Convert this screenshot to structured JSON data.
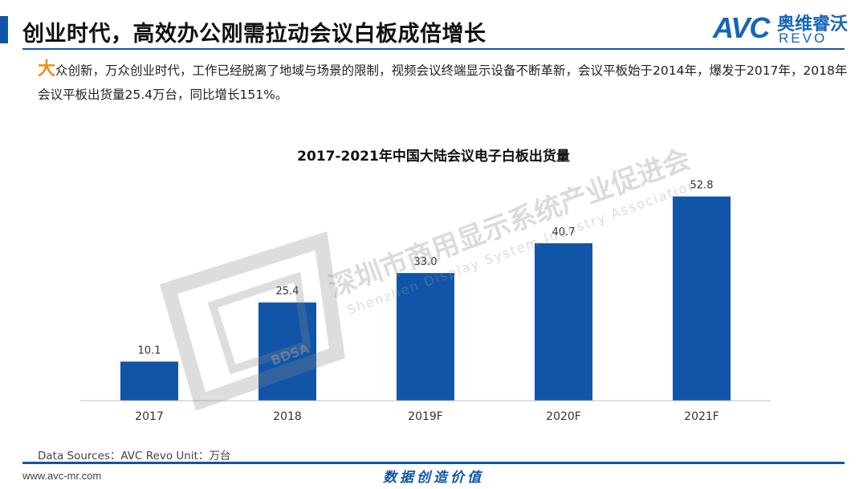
{
  "header": {
    "title": "创业时代，高效办公刚需拉动会议白板成倍增长",
    "logo_text": "AVC",
    "logo_cn": "奥维睿沃",
    "logo_en": "REVO"
  },
  "intro": {
    "initial": "大",
    "text": "众创新，万众创业时代，工作已经脱离了地域与场景的限制，视频会议终端显示设备不断革新，会议平板始于2014年，爆发于2017年，2018年会议平板出货量25.4万台，同比增长151%。"
  },
  "watermark": {
    "cn": "深圳市商用显示系统产业促进会",
    "en": "Shenzhen Display System Industry Association",
    "badge": "BDSA"
  },
  "chart_data": {
    "type": "bar",
    "title": "2017-2021年中国大陆会议电子白板出货量",
    "categories": [
      "2017",
      "2018",
      "2019F",
      "2020F",
      "2021F"
    ],
    "values": [
      10.1,
      25.4,
      33.0,
      40.7,
      52.8
    ],
    "value_labels": [
      "10.1",
      "25.4",
      "33.0",
      "40.7",
      "52.8"
    ],
    "ylim": [
      0,
      60
    ],
    "bar_color": "#1155a8",
    "grid": false,
    "legend": "none"
  },
  "footer": {
    "source": "Data Sources：AVC Revo    Unit：万台",
    "url": "www.avc-mr.com",
    "slogan": "数据创造价值"
  }
}
